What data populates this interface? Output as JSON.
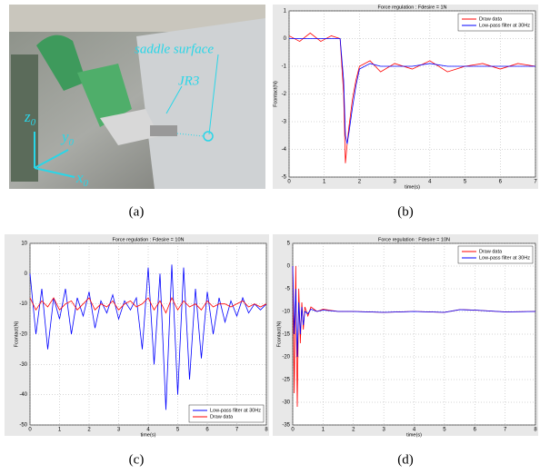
{
  "photo": {
    "surface_label": "saddle surface",
    "sensor_label": "JR3",
    "axes": [
      {
        "letter": "z",
        "subscript": "0"
      },
      {
        "letter": "y",
        "subscript": "0"
      },
      {
        "letter": "x",
        "subscript": "0"
      }
    ]
  },
  "captions": [
    "(a)",
    "(b)",
    "(c)",
    "(d)"
  ],
  "chart_data": [
    {
      "type": "line",
      "title": "Force regulation : Fdesire = 1N",
      "xlabel": "time(s)",
      "ylabel": "Fcontact(N)",
      "x": [
        0,
        0.3,
        0.6,
        0.9,
        1.2,
        1.45,
        1.55,
        1.6,
        1.65,
        1.7,
        1.8,
        1.9,
        2.0,
        2.3,
        2.6,
        3,
        3.5,
        4,
        4.5,
        5,
        5.5,
        6,
        6.5,
        7
      ],
      "series": [
        {
          "name": "Draw data",
          "color": "#ff0000",
          "values": [
            0.1,
            -0.1,
            0.2,
            -0.1,
            0.1,
            0.0,
            -2.0,
            -4.5,
            -3.8,
            -3.2,
            -2.2,
            -1.5,
            -1.0,
            -0.8,
            -1.2,
            -0.9,
            -1.1,
            -0.8,
            -1.2,
            -1.0,
            -0.9,
            -1.1,
            -0.9,
            -1.0
          ]
        },
        {
          "name": "Low-pass filter at 30Hz",
          "color": "#0000ff",
          "values": [
            0,
            0,
            0,
            0,
            0,
            0,
            -1.5,
            -3.5,
            -3.8,
            -3.4,
            -2.5,
            -1.7,
            -1.1,
            -0.9,
            -1.0,
            -1.0,
            -1.0,
            -0.9,
            -1.0,
            -1.0,
            -1.0,
            -1.0,
            -1.0,
            -1.0
          ]
        }
      ],
      "xlim": [
        0,
        7
      ],
      "ylim": [
        -5,
        1
      ],
      "xticks": [
        0,
        1,
        2,
        3,
        4,
        5,
        6,
        7
      ],
      "yticks": [
        -5,
        -4,
        -3,
        -2,
        -1,
        0,
        1
      ],
      "grid": true,
      "legend": "top-right"
    },
    {
      "type": "line",
      "title": "Force regulation : Fdesire = 10N",
      "xlabel": "time(s)",
      "ylabel": "Fcontact(N)",
      "x": [
        0,
        0.2,
        0.4,
        0.6,
        0.8,
        1.0,
        1.2,
        1.4,
        1.6,
        1.8,
        2.0,
        2.2,
        2.4,
        2.6,
        2.8,
        3.0,
        3.2,
        3.4,
        3.6,
        3.8,
        4.0,
        4.2,
        4.4,
        4.6,
        4.8,
        5.0,
        5.2,
        5.4,
        5.6,
        5.8,
        6.0,
        6.2,
        6.4,
        6.6,
        6.8,
        7.0,
        7.2,
        7.4,
        7.6,
        7.8,
        8.0
      ],
      "series": [
        {
          "name": "Low-pass filter at 30Hz",
          "color": "#0000ff",
          "values": [
            0,
            -20,
            -5,
            -25,
            -8,
            -15,
            -5,
            -20,
            -8,
            -14,
            -6,
            -18,
            -9,
            -13,
            -7,
            -15,
            -9,
            -12,
            -8,
            -25,
            2,
            -30,
            0,
            -45,
            3,
            -40,
            2,
            -35,
            -5,
            -28,
            -6,
            -20,
            -8,
            -16,
            -9,
            -14,
            -8,
            -13,
            -10,
            -12,
            -10
          ]
        },
        {
          "name": "Draw data",
          "color": "#ff0000",
          "values": [
            -8,
            -12,
            -9,
            -11,
            -8,
            -12,
            -10,
            -9,
            -12,
            -10,
            -8,
            -12,
            -10,
            -11,
            -9,
            -12,
            -10,
            -9,
            -11,
            -10,
            -8,
            -12,
            -9,
            -13,
            -8,
            -12,
            -9,
            -11,
            -10,
            -12,
            -9,
            -11,
            -10,
            -10,
            -11,
            -10,
            -9,
            -11,
            -10,
            -11,
            -10
          ]
        }
      ],
      "xlim": [
        0,
        8
      ],
      "ylim": [
        -50,
        10
      ],
      "xticks": [
        0,
        1,
        2,
        3,
        4,
        5,
        6,
        7,
        8
      ],
      "yticks": [
        -50,
        -40,
        -30,
        -20,
        -10,
        0,
        10
      ],
      "grid": true,
      "legend": "bottom-right"
    },
    {
      "type": "line",
      "title": "Force regulation : Fdesire = 10N",
      "xlabel": "time(s)",
      "ylabel": "Fcontact(N)",
      "x": [
        0,
        0.05,
        0.1,
        0.15,
        0.2,
        0.25,
        0.3,
        0.35,
        0.4,
        0.5,
        0.6,
        0.8,
        1,
        1.5,
        2,
        3,
        4,
        5,
        5.5,
        6,
        7,
        8
      ],
      "series": [
        {
          "name": "Draw data",
          "color": "#ff0000",
          "values": [
            0,
            -28,
            0,
            -31,
            -5,
            -17,
            -8,
            -14,
            -9,
            -11,
            -9,
            -10,
            -9.5,
            -10,
            -10,
            -10.2,
            -10,
            -10.2,
            -9.6,
            -9.7,
            -10.1,
            -10
          ]
        },
        {
          "name": "Low-pass filter at 30Hz",
          "color": "#0000ff",
          "values": [
            0,
            -15,
            -5,
            -20,
            -8,
            -15,
            -9,
            -13,
            -10,
            -10.5,
            -9.5,
            -10,
            -9.7,
            -10,
            -10,
            -10.2,
            -10,
            -10.2,
            -9.6,
            -9.7,
            -10.1,
            -10
          ]
        }
      ],
      "xlim": [
        0,
        8
      ],
      "ylim": [
        -35,
        5
      ],
      "xticks": [
        0,
        1,
        2,
        3,
        4,
        5,
        6,
        7,
        8
      ],
      "yticks": [
        -35,
        -30,
        -25,
        -20,
        -15,
        -10,
        -5,
        0,
        5
      ],
      "grid": true,
      "legend": "top-right"
    }
  ]
}
